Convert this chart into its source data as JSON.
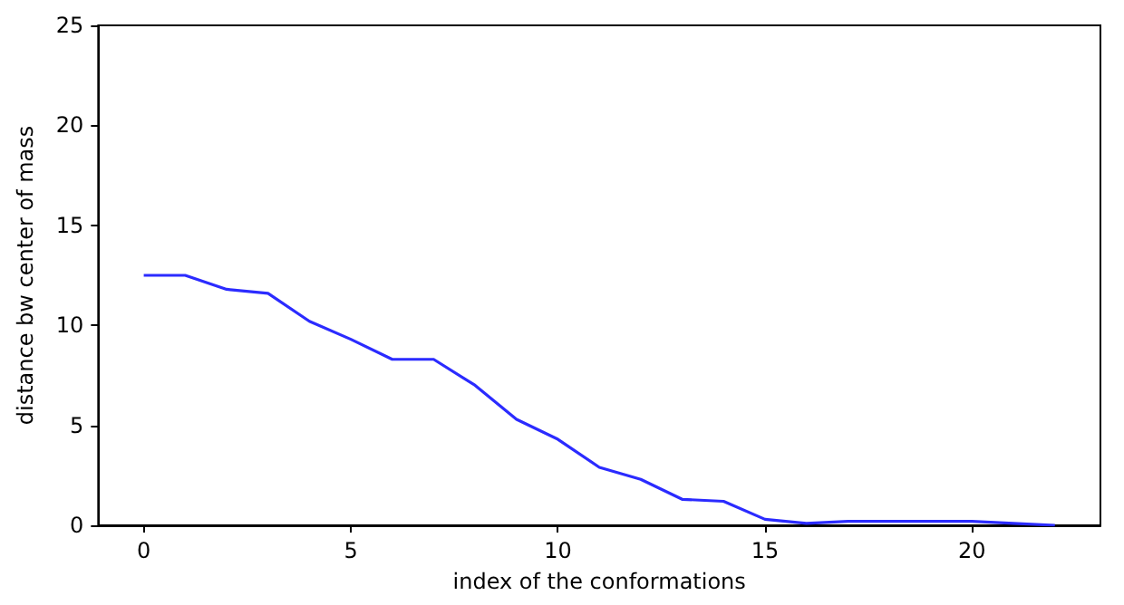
{
  "chart_data": {
    "type": "line",
    "xlabel": "index of the conformations",
    "ylabel": "distance bw center of mass",
    "x": [
      0,
      1,
      2,
      3,
      4,
      5,
      6,
      7,
      8,
      9,
      10,
      11,
      12,
      13,
      14,
      15,
      16,
      17,
      18,
      19,
      20,
      21,
      22
    ],
    "series": [
      {
        "color": "#2b2bff",
        "values": [
          12.5,
          12.5,
          11.8,
          11.6,
          10.2,
          9.3,
          8.3,
          8.3,
          7.0,
          5.3,
          4.3,
          2.9,
          2.3,
          1.3,
          1.2,
          0.3,
          0.1,
          0.2,
          0.2,
          0.2,
          0.2,
          0.1,
          0.0
        ]
      }
    ],
    "xlim": [
      -1.1,
      23.1
    ],
    "xticks": [
      0,
      5,
      10,
      15,
      20
    ],
    "ylim": [
      0,
      25
    ],
    "yticks": [
      0,
      5,
      10,
      15,
      20,
      25
    ],
    "grid": false,
    "marker": "none",
    "line_style": "solid"
  }
}
